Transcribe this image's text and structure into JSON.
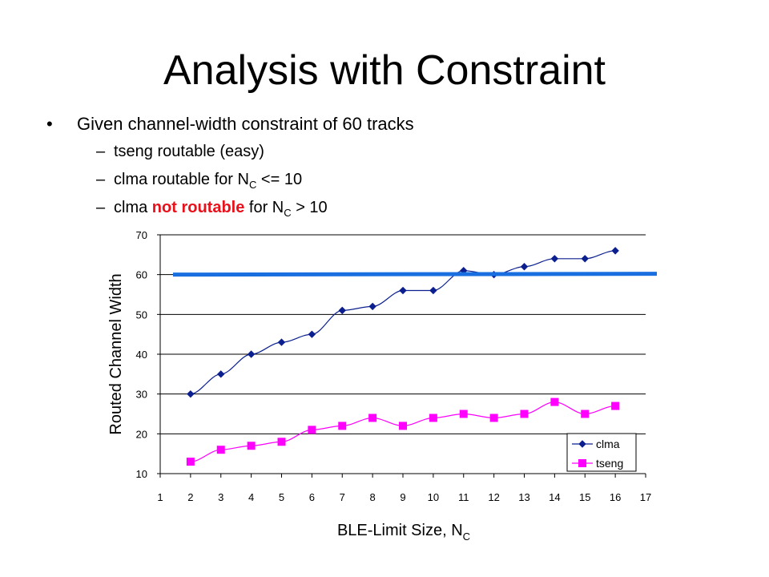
{
  "slide": {
    "title": "Analysis with Constraint",
    "bullet": {
      "marker": "•",
      "text": "Given channel-width constraint of 60 tracks"
    },
    "subbullets": [
      {
        "dash": "–",
        "text": "tseng routable (easy)"
      },
      {
        "dash": "–",
        "pre": "clma routable for N",
        "subscript": "C",
        "post": " <= 10"
      },
      {
        "dash": "–",
        "pre": "clma ",
        "highlight": "not routable",
        "mid": " for N",
        "subscript": "C",
        "post": " > 10"
      }
    ]
  },
  "chart_data": {
    "type": "line",
    "ylabel": "Routed Channel Width",
    "xlabel_main": "BLE-Limit Size, N",
    "xlabel_sub": "C",
    "x_ticks": [
      1,
      2,
      3,
      4,
      5,
      6,
      7,
      8,
      9,
      10,
      11,
      12,
      13,
      14,
      15,
      16,
      17
    ],
    "y_ticks": [
      10,
      20,
      30,
      40,
      50,
      60,
      70
    ],
    "xlim": [
      1,
      17
    ],
    "ylim": [
      10,
      70
    ],
    "grid": "horizontal",
    "legend_position": "bottom-right",
    "constraint_line": {
      "y": 60,
      "color": "#1a6fe0"
    },
    "series": [
      {
        "name": "clma",
        "color": "#0b1f8f",
        "marker": "diamond",
        "x": [
          2,
          3,
          4,
          5,
          6,
          7,
          8,
          9,
          10,
          11,
          12,
          13,
          14,
          15,
          16
        ],
        "values": [
          30,
          35,
          40,
          43,
          45,
          51,
          52,
          56,
          56,
          61,
          60,
          62,
          64,
          64,
          66
        ]
      },
      {
        "name": "tseng",
        "color": "#ff00ff",
        "marker": "square",
        "x": [
          2,
          3,
          4,
          5,
          6,
          7,
          8,
          9,
          10,
          11,
          12,
          13,
          14,
          15,
          16
        ],
        "values": [
          13,
          16,
          17,
          18,
          21,
          22,
          24,
          22,
          24,
          25,
          24,
          25,
          28,
          25,
          27
        ]
      }
    ]
  }
}
